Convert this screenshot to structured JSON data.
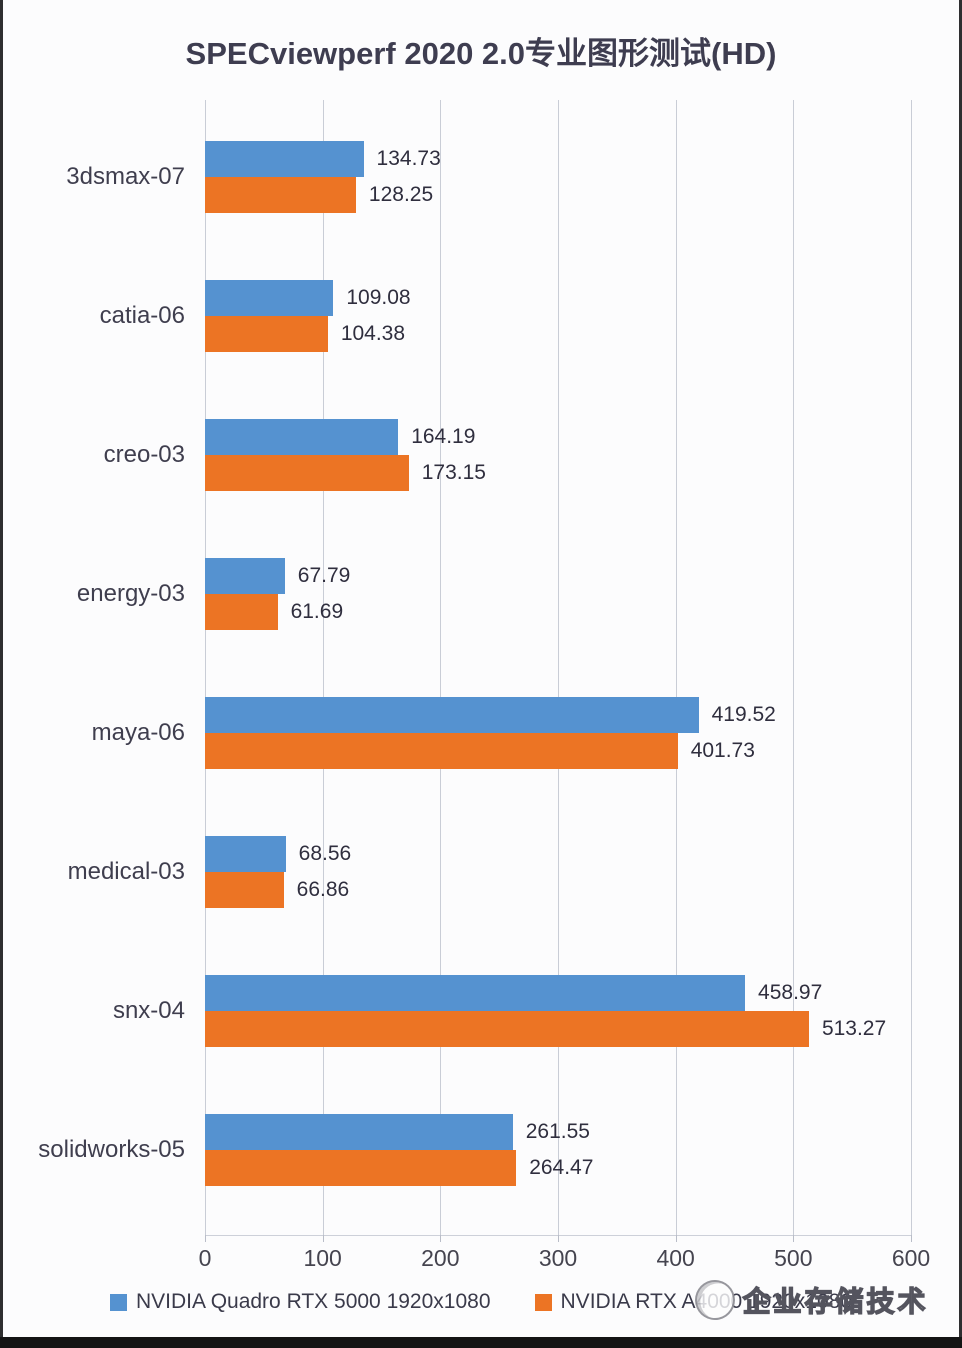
{
  "title": "SPECviewperf 2020 2.0专业图形测试(HD)",
  "watermark": {
    "text": "企业存储技术"
  },
  "colors": {
    "series1_blue": "#5592D0",
    "series2_orange": "#EC7424",
    "gridline": "#c9cdd6",
    "title_text": "#3e3d50",
    "bottom_strip": "#141414"
  },
  "chart_data": {
    "type": "bar",
    "orientation": "horizontal",
    "title": "SPECviewperf 2020 2.0专业图形测试(HD)",
    "categories": [
      "3dsmax-07",
      "catia-06",
      "creo-03",
      "energy-03",
      "maya-06",
      "medical-03",
      "snx-04",
      "solidworks-05"
    ],
    "series": [
      {
        "name": "NVIDIA Quadro RTX 5000 1920x1080",
        "color": "#5592D0",
        "values": [
          134.73,
          109.08,
          164.19,
          67.79,
          419.52,
          68.56,
          458.97,
          261.55
        ]
      },
      {
        "name": "NVIDIA RTX A4000 1920x1080",
        "color": "#EC7424",
        "values": [
          128.25,
          104.38,
          173.15,
          61.69,
          401.73,
          66.86,
          513.27,
          264.47
        ]
      }
    ],
    "xlabel": "",
    "ylabel": "",
    "xlim": [
      0,
      600
    ],
    "x_ticks": [
      0,
      100,
      200,
      300,
      400,
      500,
      600
    ],
    "grid": "vertical",
    "legend_position": "bottom",
    "value_label_decimals": 2
  }
}
